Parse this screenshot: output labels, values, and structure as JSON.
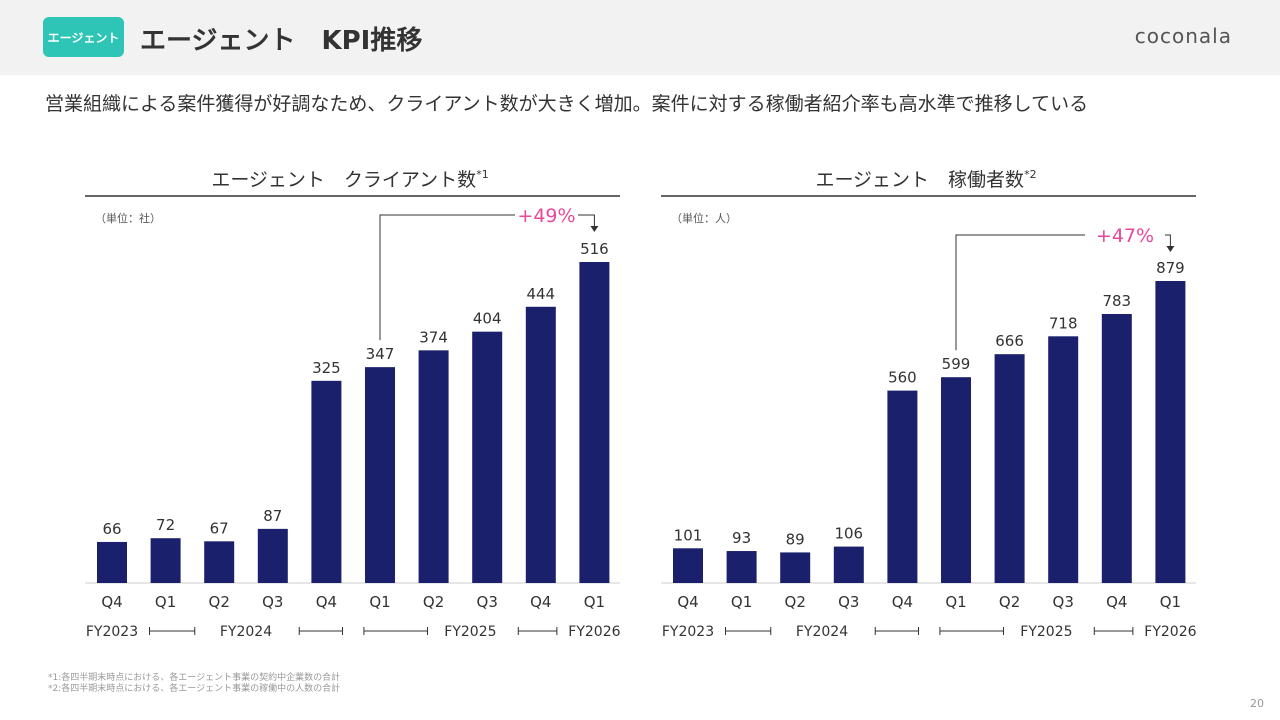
{
  "header": {
    "badge": "エージェント",
    "title": "エージェント　KPI推移",
    "logo": "coconala"
  },
  "subtitle": "営業組織による案件獲得が好調なため、クライアント数が大きく増加。案件に対する稼働者紹介率も高水準で推移している",
  "chart_data": [
    {
      "type": "bar",
      "title": "エージェント　クライアント数",
      "title_note": "*1",
      "unit": "（単位：社）",
      "categories": [
        "Q4",
        "Q1",
        "Q2",
        "Q3",
        "Q4",
        "Q1",
        "Q2",
        "Q3",
        "Q4",
        "Q1"
      ],
      "fiscal_years": [
        "FY2023",
        "FY2024",
        "FY2025",
        "FY2026"
      ],
      "values": [
        66,
        72,
        67,
        87,
        325,
        347,
        374,
        404,
        444,
        516
      ],
      "annotation": {
        "label": "+49%",
        "from_index": 5,
        "to_index": 9
      },
      "bar_color": "#1a206b",
      "annotation_color": "#e8489a"
    },
    {
      "type": "bar",
      "title": "エージェント　稼働者数",
      "title_note": "*2",
      "unit": "（単位：人）",
      "categories": [
        "Q4",
        "Q1",
        "Q2",
        "Q3",
        "Q4",
        "Q1",
        "Q2",
        "Q3",
        "Q4",
        "Q1"
      ],
      "fiscal_years": [
        "FY2023",
        "FY2024",
        "FY2025",
        "FY2026"
      ],
      "values": [
        101,
        93,
        89,
        106,
        560,
        599,
        666,
        718,
        783,
        879
      ],
      "annotation": {
        "label": "+47%",
        "from_index": 5,
        "to_index": 9
      },
      "bar_color": "#1a206b",
      "annotation_color": "#e8489a"
    }
  ],
  "footnotes": [
    "*1:各四半期末時点における、各エージェント事業の契約中企業数の合計",
    "*2:各四半期末時点における、各エージェント事業の稼働中の人数の合計"
  ],
  "page_number": "20"
}
